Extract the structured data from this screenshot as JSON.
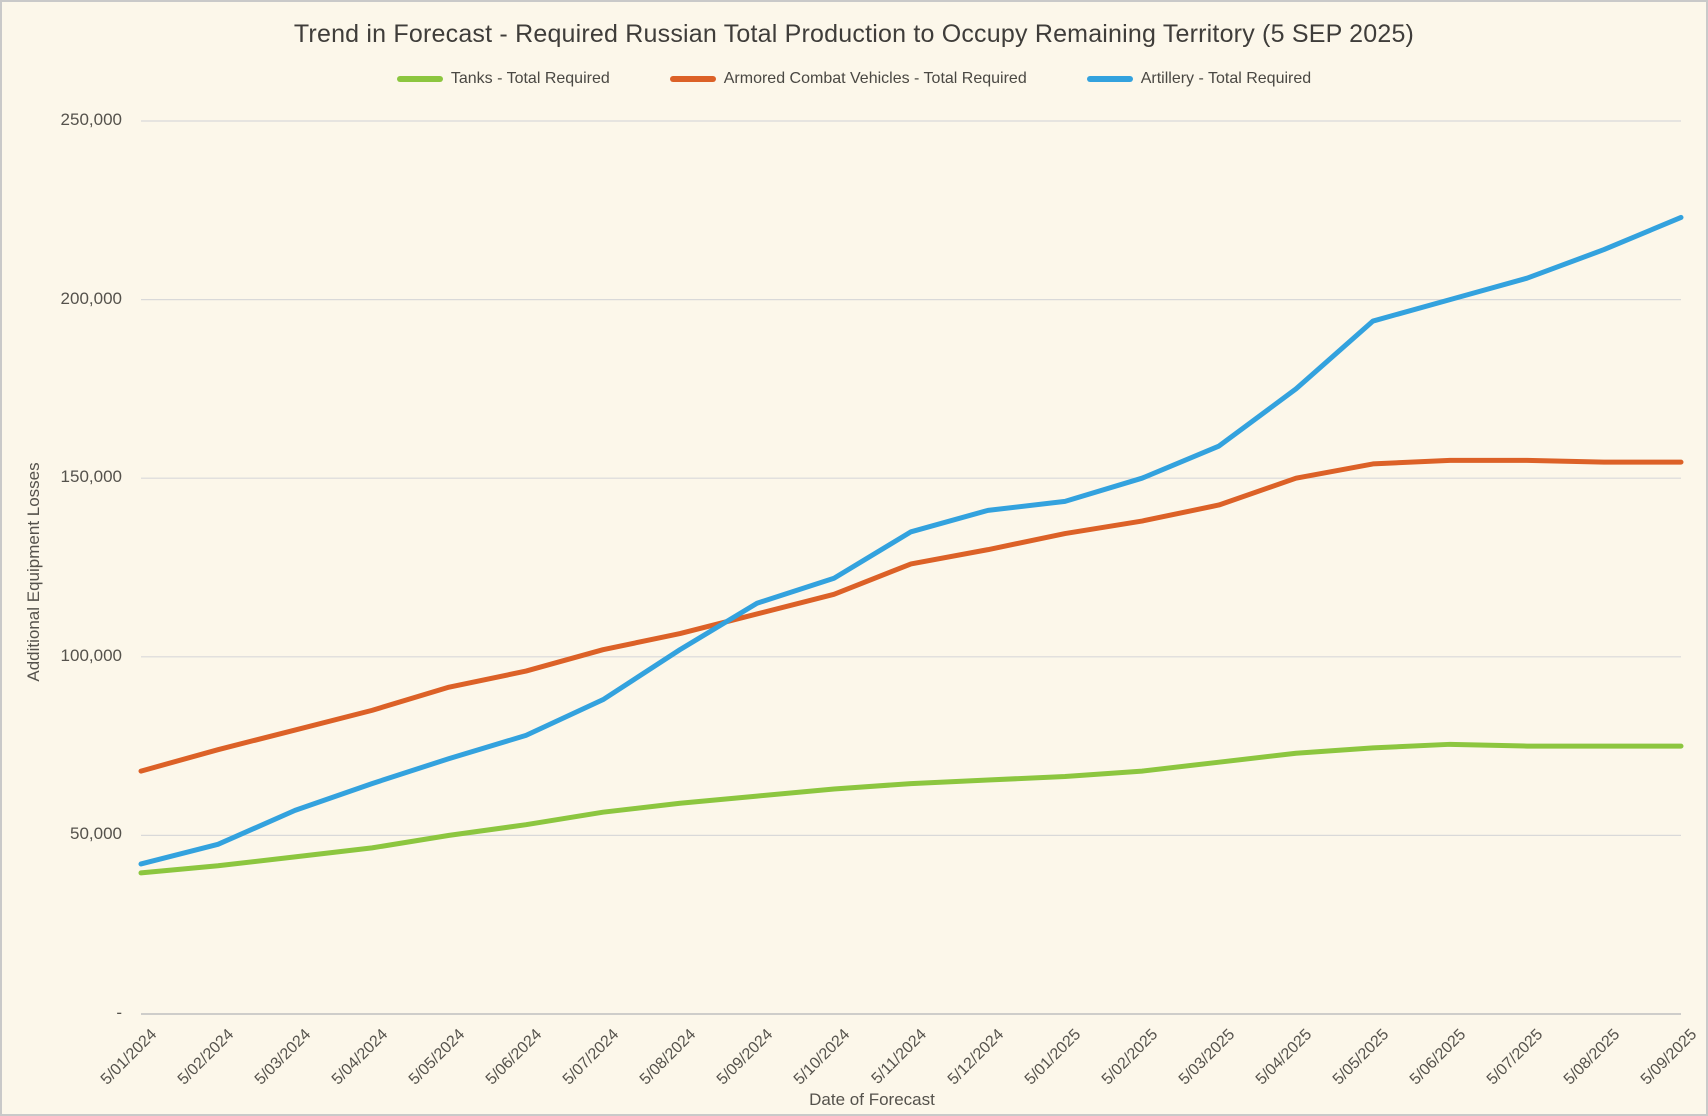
{
  "title": "Trend in Forecast - Required Russian Total Production to Occupy Remaining Territory (5 SEP 2025)",
  "legend": {
    "items": [
      {
        "label": "Tanks - Total Required",
        "color": "#8CC63F"
      },
      {
        "label": "Armored Combat Vehicles - Total Required",
        "color": "#DC6127"
      },
      {
        "label": "Artillery - Total Required",
        "color": "#33A2DE"
      }
    ]
  },
  "axes": {
    "y_title": "Additional Equipment Losses",
    "x_title": "Date of Forecast",
    "y_tick_labels": [
      "250,000",
      "200,000",
      "150,000",
      "100,000",
      "50,000",
      "-"
    ]
  },
  "colors": {
    "background": "#FCF7EA",
    "border": "#C9C9C9",
    "gridline": "#D9D9D9",
    "axis_line": "#BFBFBF",
    "text": "#55524C",
    "title_text": "#3F3D3A"
  },
  "chart_data": {
    "type": "line",
    "title": "Trend in Forecast - Required Russian Total Production to Occupy Remaining Territory (5 SEP 2025)",
    "xlabel": "Date of Forecast",
    "ylabel": "Additional Equipment Losses",
    "ylim": [
      0,
      250000
    ],
    "y_tick_interval": 50000,
    "grid": true,
    "legend_position": "top",
    "categories": [
      "5/01/2024",
      "5/02/2024",
      "5/03/2024",
      "5/04/2024",
      "5/05/2024",
      "5/06/2024",
      "5/07/2024",
      "5/08/2024",
      "5/09/2024",
      "5/10/2024",
      "5/11/2024",
      "5/12/2024",
      "5/01/2025",
      "5/02/2025",
      "5/03/2025",
      "5/04/2025",
      "5/05/2025",
      "5/06/2025",
      "5/07/2025",
      "5/08/2025",
      "5/09/2025"
    ],
    "series": [
      {
        "name": "Tanks - Total Required",
        "color": "#8CC63F",
        "values": [
          39500,
          41500,
          44000,
          46500,
          50000,
          53000,
          56500,
          59000,
          61000,
          63000,
          64500,
          65500,
          66500,
          68000,
          70500,
          73000,
          74500,
          75500,
          75000,
          75000,
          75000
        ]
      },
      {
        "name": "Armored Combat Vehicles - Total Required",
        "color": "#DC6127",
        "values": [
          68000,
          74000,
          79500,
          85000,
          91500,
          96000,
          102000,
          106500,
          112000,
          117500,
          126000,
          130000,
          134500,
          138000,
          142500,
          150000,
          154000,
          155000,
          155000,
          154500,
          154500
        ]
      },
      {
        "name": "Artillery - Total Required",
        "color": "#33A2DE",
        "values": [
          42000,
          47500,
          57000,
          64500,
          71500,
          78000,
          88000,
          102000,
          115000,
          122000,
          135000,
          141000,
          143500,
          150000,
          159000,
          175000,
          194000,
          200000,
          206000,
          214000,
          223000
        ]
      }
    ]
  }
}
